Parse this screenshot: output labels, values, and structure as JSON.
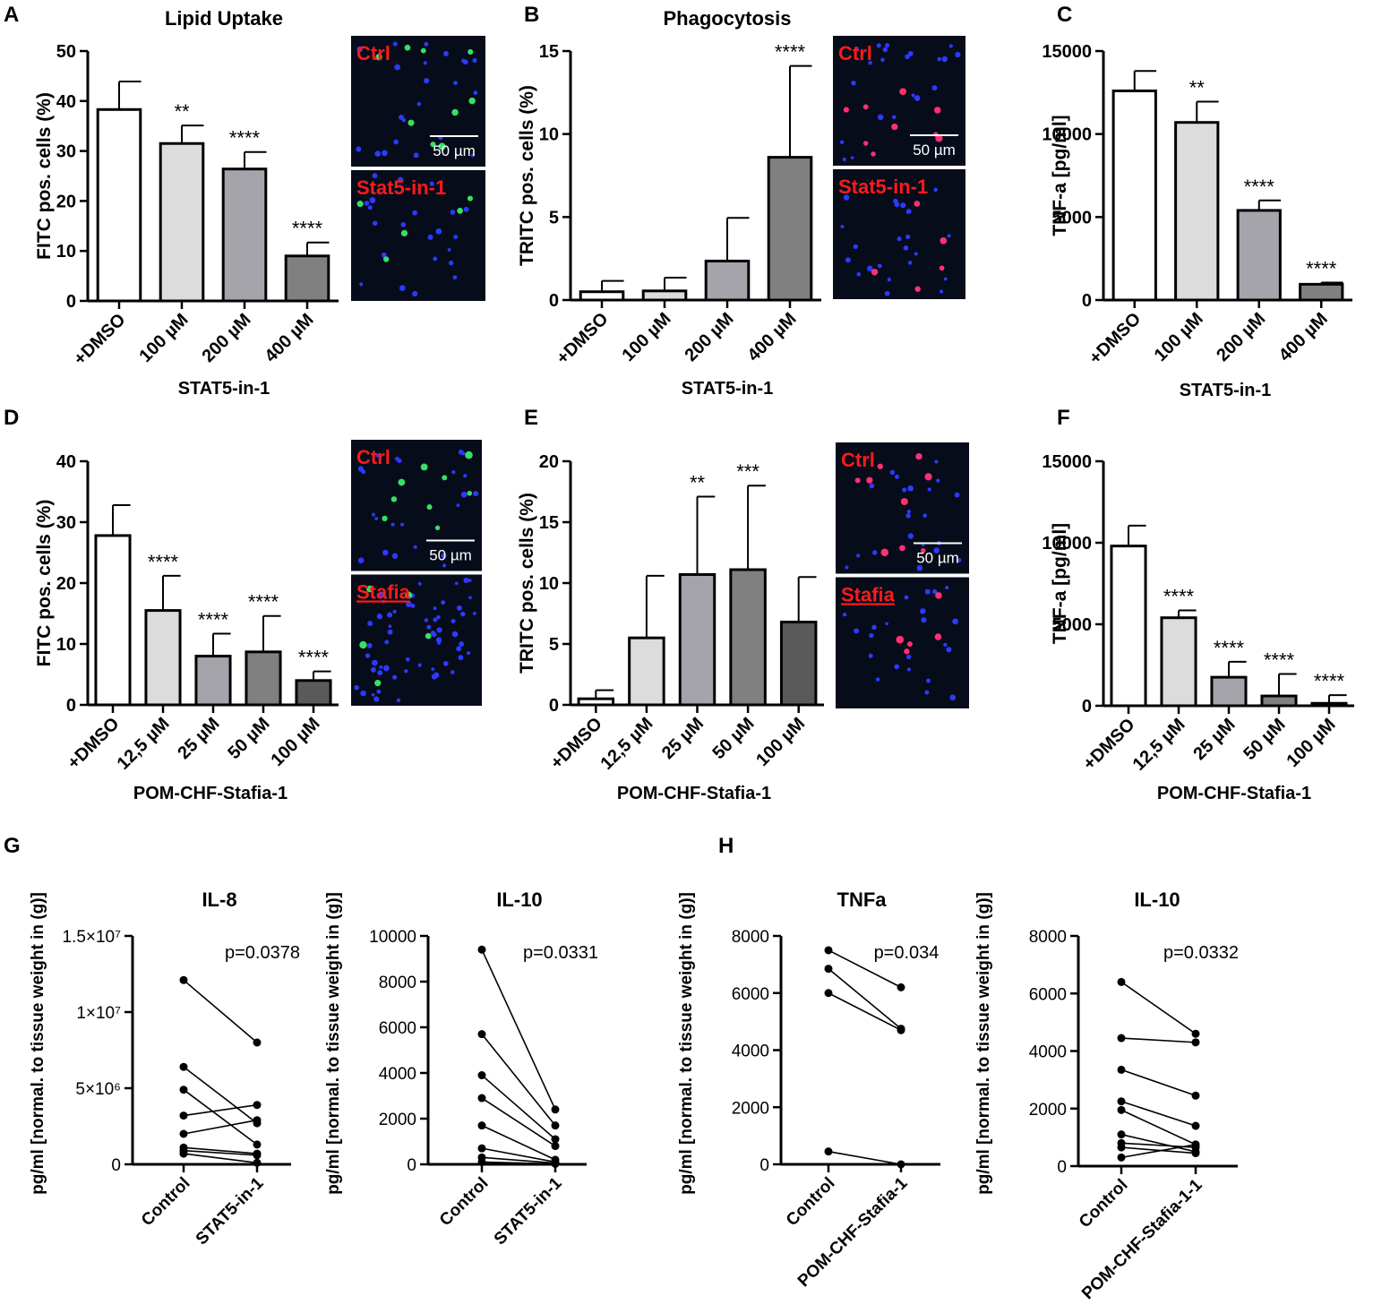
{
  "chart_data": [
    {
      "panel": "A",
      "type": "bar",
      "title": "Lipid Uptake",
      "categories": [
        "+DMSO",
        "100 µM",
        "200 µM",
        "400 µM"
      ],
      "values": [
        38.3,
        31.5,
        26.4,
        9.0
      ],
      "errors": [
        5.6,
        3.6,
        3.4,
        2.7
      ],
      "significance": [
        "",
        "**",
        "****",
        "****"
      ],
      "fills": [
        "#ffffff",
        "#dcdcdc",
        "#a4a4aa",
        "#808080"
      ],
      "ylabel": "FITC pos. cells (%)",
      "xlabel": "STAT5-in-1",
      "ylim": [
        0,
        50
      ],
      "yticks": [
        0,
        10,
        20,
        30,
        40,
        50
      ],
      "ytick_labels": [
        "0",
        "10",
        "20",
        "30",
        "40",
        "50"
      ],
      "micrograph": {
        "top_label": "Ctrl",
        "bottom_label": "Stat5-in-1",
        "scale_bar": "50 µm",
        "dot_color": "#35e065"
      }
    },
    {
      "panel": "B",
      "type": "bar",
      "title": "Phagocytosis",
      "categories": [
        "+DMSO",
        "100 µM",
        "200 µM",
        "400 µM"
      ],
      "values": [
        0.5,
        0.55,
        2.35,
        8.6
      ],
      "errors": [
        0.65,
        0.8,
        2.6,
        5.5
      ],
      "significance": [
        "",
        "",
        "",
        "****"
      ],
      "fills": [
        "#ffffff",
        "#dcdcdc",
        "#a4a4aa",
        "#808080"
      ],
      "ylabel": "TRITC pos. cells (%)",
      "xlabel": "STAT5-in-1",
      "ylim": [
        0,
        15
      ],
      "yticks": [
        0,
        5,
        10,
        15
      ],
      "ytick_labels": [
        "0",
        "5",
        "10",
        "15"
      ],
      "micrograph": {
        "top_label": "Ctrl",
        "bottom_label": "Stat5-in-1",
        "scale_bar": "50 µm",
        "dot_color": "#ff3070"
      }
    },
    {
      "panel": "C",
      "type": "bar",
      "title": "",
      "categories": [
        "+DMSO",
        "100 µM",
        "200 µM",
        "400 µM"
      ],
      "values": [
        12600,
        10700,
        5400,
        950
      ],
      "errors": [
        1200,
        1250,
        600,
        100
      ],
      "significance": [
        "",
        "**",
        "****",
        "****"
      ],
      "fills": [
        "#ffffff",
        "#dcdcdc",
        "#a4a4aa",
        "#808080"
      ],
      "ylabel": "TNF-a [pg/ml]",
      "xlabel": "STAT5-in-1",
      "ylim": [
        0,
        15000
      ],
      "yticks": [
        0,
        5000,
        10000,
        15000
      ],
      "ytick_labels": [
        "0",
        "5000",
        "10000",
        "15000"
      ]
    },
    {
      "panel": "D",
      "type": "bar",
      "title": "",
      "categories": [
        "+DMSO",
        "12,5 µM",
        "25 µM",
        "50 µM",
        "100 µM"
      ],
      "values": [
        27.8,
        15.5,
        8.0,
        8.7,
        4.0
      ],
      "errors": [
        5.0,
        5.7,
        3.7,
        5.9,
        1.5
      ],
      "significance": [
        "",
        "****",
        "****",
        "****",
        "****"
      ],
      "fills": [
        "#ffffff",
        "#dcdcdc",
        "#a4a4aa",
        "#808080",
        "#5a5a5a"
      ],
      "ylabel": "FITC pos. cells (%)",
      "xlabel": "POM-CHF-Stafia-1",
      "ylim": [
        0,
        40
      ],
      "yticks": [
        0,
        10,
        20,
        30,
        40
      ],
      "ytick_labels": [
        "0",
        "10",
        "20",
        "30",
        "40"
      ],
      "micrograph": {
        "top_label": "Ctrl",
        "bottom_label": "Stafia",
        "scale_bar": "50 µm",
        "dot_color": "#35e065"
      }
    },
    {
      "panel": "E",
      "type": "bar",
      "title": "",
      "categories": [
        "+DMSO",
        "12,5 µM",
        "25 µM",
        "50 µM",
        "100 µM"
      ],
      "values": [
        0.5,
        5.5,
        10.7,
        11.1,
        6.8
      ],
      "errors": [
        0.7,
        5.1,
        6.4,
        6.9,
        3.7
      ],
      "significance": [
        "",
        "",
        "**",
        "***",
        ""
      ],
      "fills": [
        "#ffffff",
        "#dcdcdc",
        "#a4a4aa",
        "#808080",
        "#5a5a5a"
      ],
      "ylabel": "TRITC pos. cells (%)",
      "xlabel": "POM-CHF-Stafia-1",
      "ylim": [
        0,
        20
      ],
      "yticks": [
        0,
        5,
        10,
        15,
        20
      ],
      "ytick_labels": [
        "0",
        "5",
        "10",
        "15",
        "20"
      ],
      "micrograph": {
        "top_label": "Ctrl",
        "bottom_label": "Stafia",
        "scale_bar": "50 µm",
        "dot_color": "#ff3070"
      }
    },
    {
      "panel": "F",
      "type": "bar",
      "title": "",
      "categories": [
        "+DMSO",
        "12,5 µM",
        "25 µM",
        "50 µM",
        "100 µM"
      ],
      "values": [
        9800,
        5400,
        1750,
        600,
        150
      ],
      "errors": [
        1250,
        450,
        950,
        1350,
        500
      ],
      "significance": [
        "",
        "****",
        "****",
        "****",
        "****"
      ],
      "fills": [
        "#ffffff",
        "#dcdcdc",
        "#a4a4aa",
        "#808080",
        "#5a5a5a"
      ],
      "ylabel": "TNF-a [pg/ml]",
      "xlabel": "POM-CHF-Stafia-1",
      "ylim": [
        0,
        15000
      ],
      "yticks": [
        0,
        5000,
        10000,
        15000
      ],
      "ytick_labels": [
        "0",
        "5000",
        "10000",
        "15000"
      ]
    },
    {
      "panel": "G",
      "type": "line",
      "title": "IL-8",
      "categories": [
        "Control",
        "STAT5-in-1"
      ],
      "pairs": [
        [
          12100000,
          8000000
        ],
        [
          6400000,
          2700000
        ],
        [
          4900000,
          1300000
        ],
        [
          3200000,
          3900000
        ],
        [
          2000000,
          2900000
        ],
        [
          1100000,
          700000
        ],
        [
          900000,
          600000
        ],
        [
          700000,
          100000
        ]
      ],
      "annotation": "p=0.0378",
      "ylabel": "pg/ml [normal. to tissue weight in (g)]",
      "ylim": [
        0,
        15000000
      ],
      "yticks": [
        0,
        5000000,
        10000000,
        15000000
      ],
      "ytick_labels": [
        "0",
        "5×10⁶",
        "1×10⁷",
        "1.5×10⁷"
      ]
    },
    {
      "panel": "G",
      "type": "line",
      "title": "IL-10",
      "categories": [
        "Control",
        "STAT5-in-1"
      ],
      "pairs": [
        [
          9400,
          2400
        ],
        [
          5700,
          1700
        ],
        [
          3900,
          1100
        ],
        [
          2900,
          800
        ],
        [
          1700,
          200
        ],
        [
          700,
          100
        ],
        [
          300,
          50
        ],
        [
          100,
          20
        ]
      ],
      "annotation": "p=0.0331",
      "ylabel": "pg/ml [normal. to tissue weight in (g)]",
      "ylim": [
        0,
        10000
      ],
      "yticks": [
        0,
        2000,
        4000,
        6000,
        8000,
        10000
      ],
      "ytick_labels": [
        "0",
        "2000",
        "4000",
        "6000",
        "8000",
        "10000"
      ]
    },
    {
      "panel": "H",
      "type": "line",
      "title": "TNFa",
      "categories": [
        "Control",
        "POM-CHF-Stafia-1"
      ],
      "pairs": [
        [
          7500,
          6200
        ],
        [
          6850,
          4750
        ],
        [
          6000,
          4700
        ],
        [
          450,
          0
        ]
      ],
      "annotation": "p=0.034",
      "ylabel": "pg/ml [normal. to tissue weight in (g)]",
      "ylim": [
        0,
        8000
      ],
      "yticks": [
        0,
        2000,
        4000,
        6000,
        8000
      ],
      "ytick_labels": [
        "0",
        "2000",
        "4000",
        "6000",
        "8000"
      ]
    },
    {
      "panel": "H",
      "type": "line",
      "title": "IL-10",
      "categories": [
        "Control",
        "POM-CHF-Stafia-1-1"
      ],
      "pairs": [
        [
          6400,
          4600
        ],
        [
          4450,
          4300
        ],
        [
          3350,
          2450
        ],
        [
          2250,
          1400
        ],
        [
          1950,
          750
        ],
        [
          1100,
          500
        ],
        [
          800,
          650
        ],
        [
          650,
          450
        ],
        [
          300,
          750
        ]
      ],
      "annotation": "p=0.0332",
      "ylabel": "pg/ml [normal. to tissue weight in (g)]",
      "ylim": [
        0,
        8000
      ],
      "yticks": [
        0,
        2000,
        4000,
        6000,
        8000
      ],
      "ytick_labels": [
        "0",
        "2000",
        "4000",
        "6000",
        "8000"
      ]
    }
  ],
  "panel_letters": [
    "A",
    "B",
    "C",
    "D",
    "E",
    "F",
    "G",
    "H"
  ],
  "colors": {
    "micrograph_bg": "#070c1a",
    "label_red": "#ff1a1a",
    "nuclei_blue": "#2a3bff"
  }
}
